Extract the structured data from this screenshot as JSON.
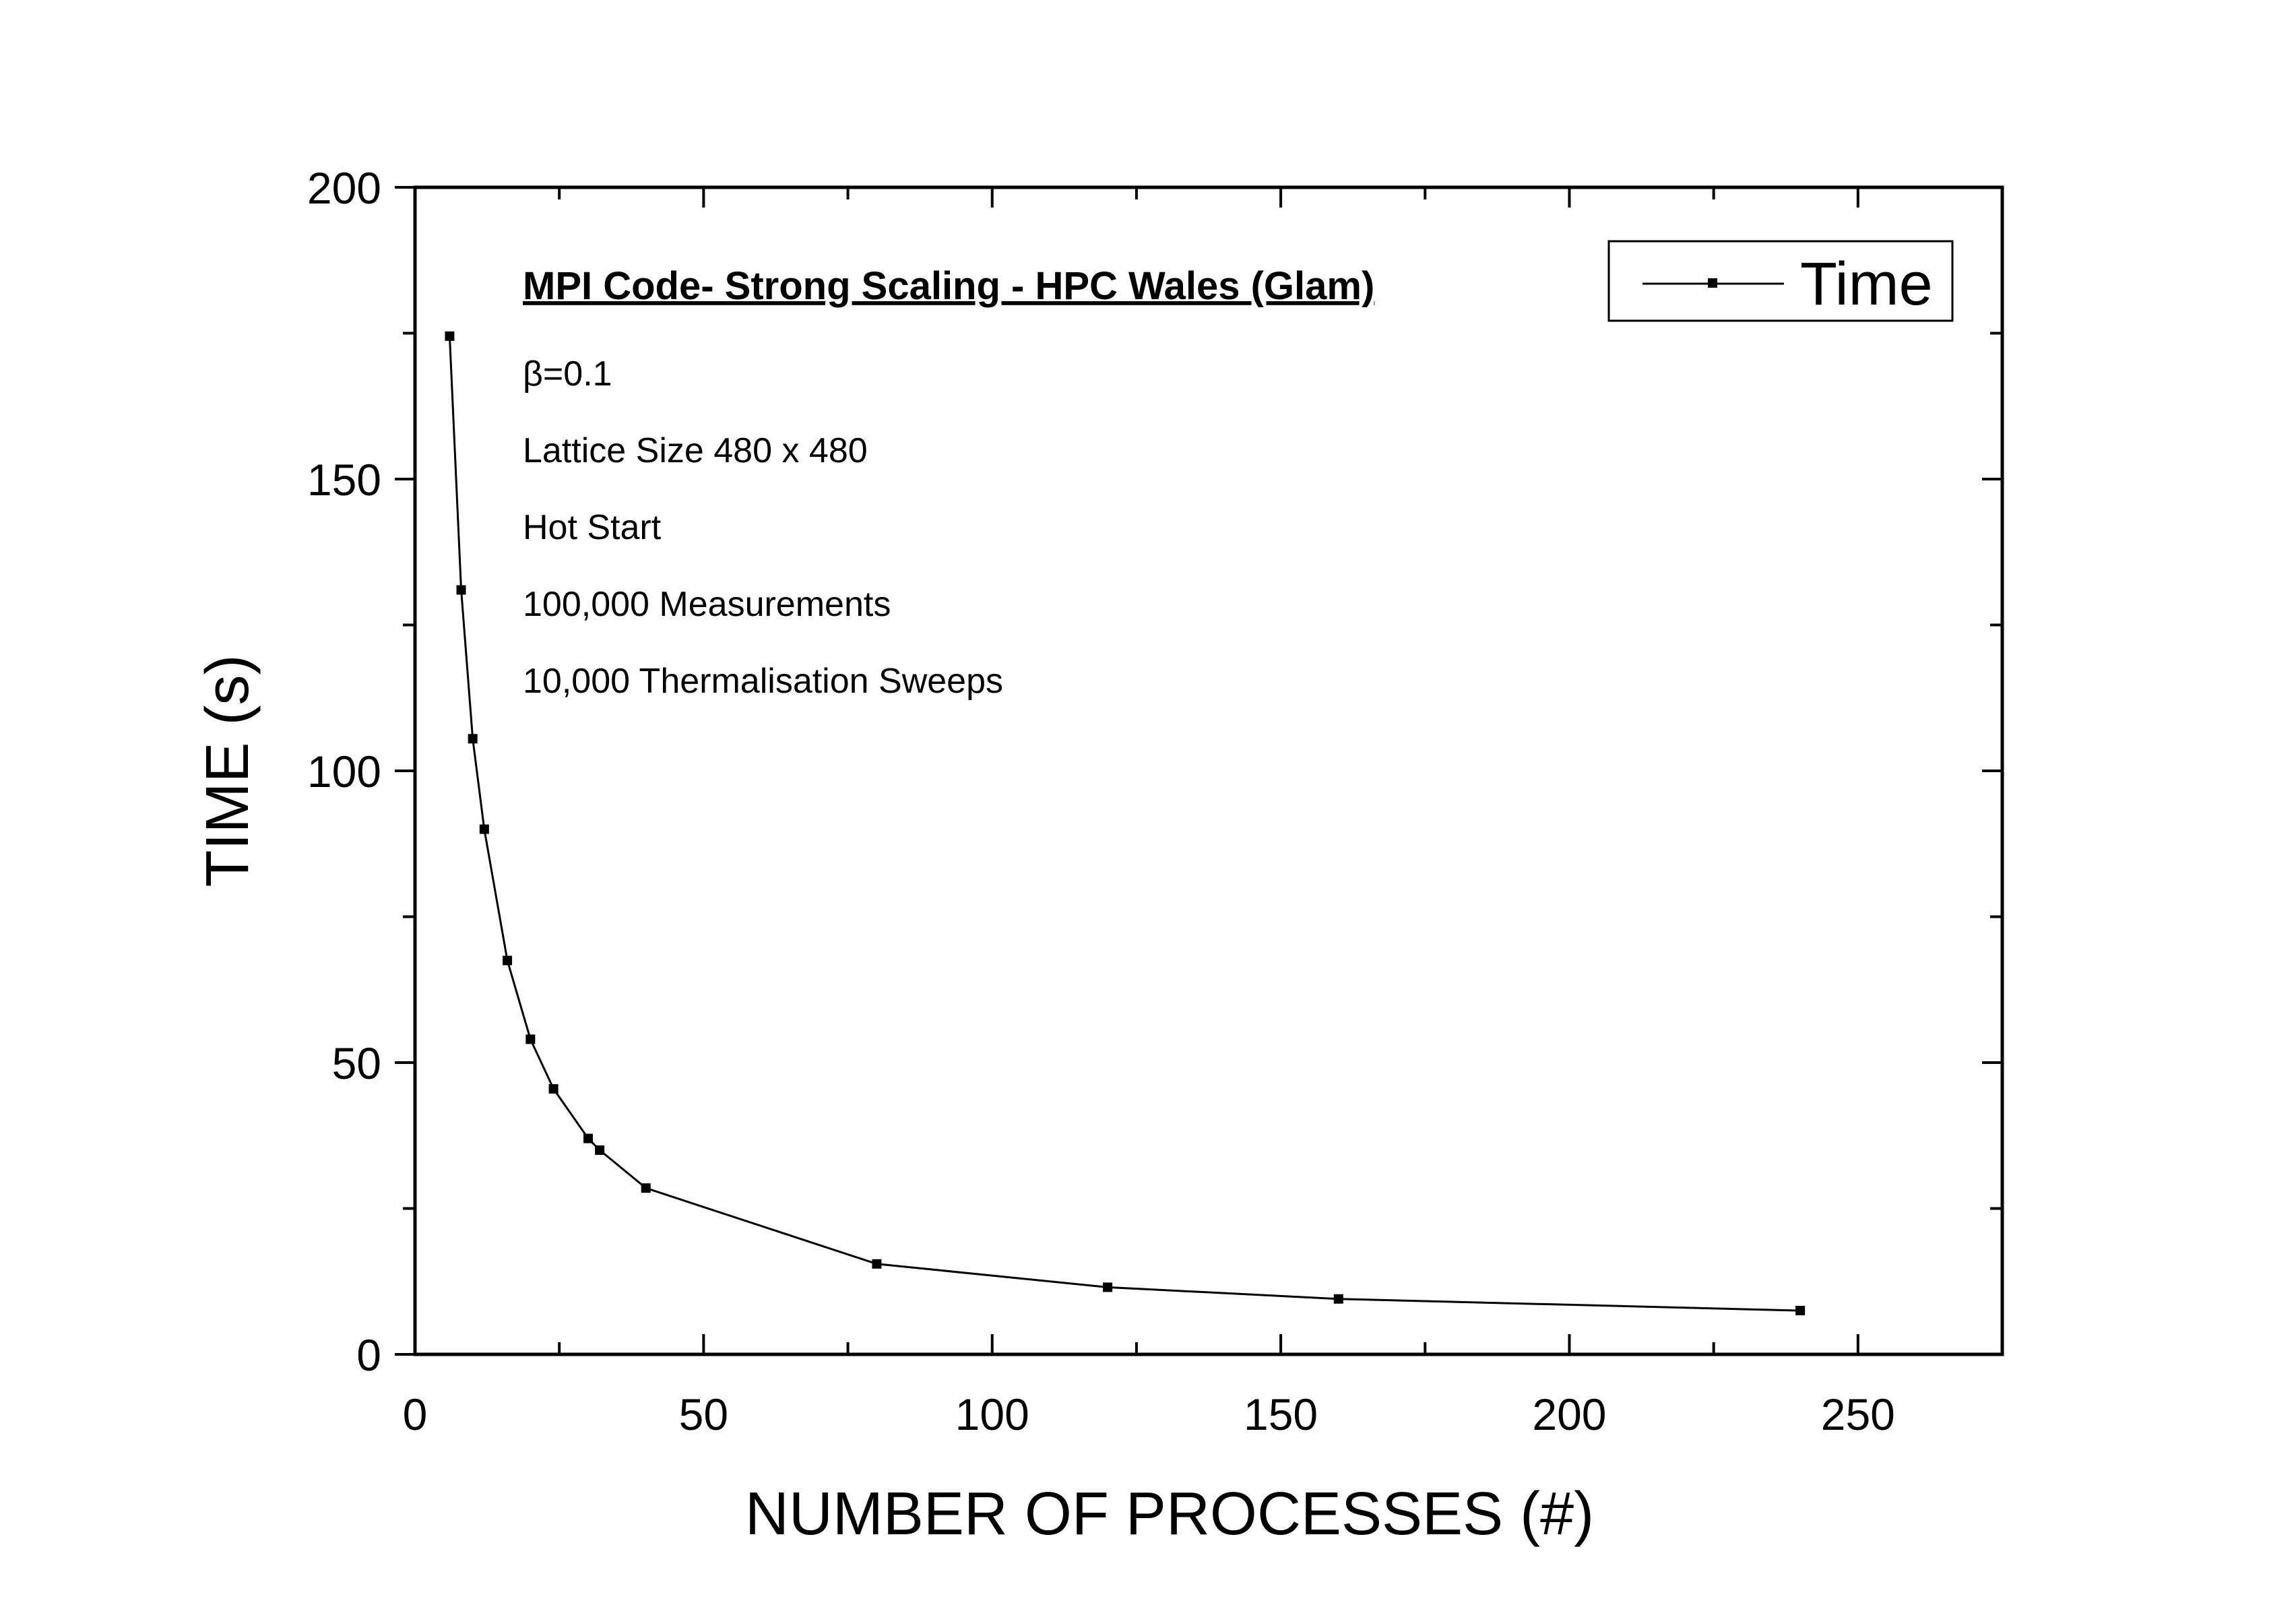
{
  "chart_data": {
    "type": "line",
    "xlabel": "NUMBER OF PROCESSES (#)",
    "ylabel": "TIME (s)",
    "xlim": [
      0,
      275
    ],
    "ylim": [
      0,
      200
    ],
    "x_ticks": [
      "0",
      "50",
      "100",
      "150",
      "200",
      "250"
    ],
    "y_ticks": [
      "0",
      "50",
      "100",
      "150",
      "200"
    ],
    "grid": false,
    "legend": {
      "position": "top-right",
      "entries": [
        "Time"
      ]
    },
    "series": [
      {
        "name": "Time",
        "color": "#000000",
        "marker": "square",
        "x": [
          6,
          8,
          10,
          12,
          16,
          20,
          24,
          30,
          32,
          40,
          80,
          120,
          160,
          240
        ],
        "y": [
          174.5,
          131,
          105.5,
          90,
          67.5,
          54,
          45.5,
          37,
          35,
          28.5,
          15.5,
          11.5,
          9.5,
          7.5
        ]
      }
    ],
    "annotations": {
      "title": "MPI Code- Strong Scaling - HPC Wales (Glam)",
      "lines": [
        "β=0.1",
        "Lattice Size 480 x 480",
        "Hot Start",
        "100,000 Measurements",
        "10,000 Thermalisation Sweeps"
      ]
    }
  }
}
